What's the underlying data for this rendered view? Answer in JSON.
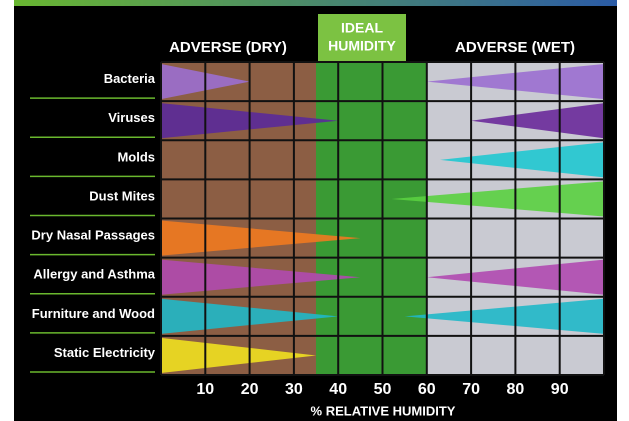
{
  "chart_data": {
    "type": "wedge-range",
    "headers": {
      "dry": "ADVERSE (DRY)",
      "ideal": [
        "IDEAL",
        "HUMIDITY"
      ],
      "wet": "ADVERSE (WET)"
    },
    "x_label": "% RELATIVE HUMIDITY",
    "categories": [
      "Bacteria",
      "Viruses",
      "Molds",
      "Dust Mites",
      "Dry Nasal Passages",
      "Allergy and Asthma",
      "Furniture and Wood",
      "Static Electricity"
    ],
    "dry_end": [
      20,
      40,
      null,
      null,
      45,
      45,
      40,
      35
    ],
    "wet_start": [
      60,
      70,
      63,
      52,
      null,
      60,
      55,
      null
    ],
    "dry_colors": [
      "#9b6fd0",
      "#5a2a9a",
      null,
      null,
      "#f07a20",
      "#b04ab0",
      "#20b8c8",
      "#f0e020"
    ],
    "wet_colors": [
      null,
      "#6a2a9a",
      "#20c8d0",
      "#5ad040",
      null,
      "#b04ab0",
      "#20b8c8",
      null
    ],
    "xlim": [
      0,
      100
    ],
    "xticks": [
      10,
      20,
      30,
      40,
      50,
      60,
      70,
      80,
      90
    ],
    "grid": true
  }
}
